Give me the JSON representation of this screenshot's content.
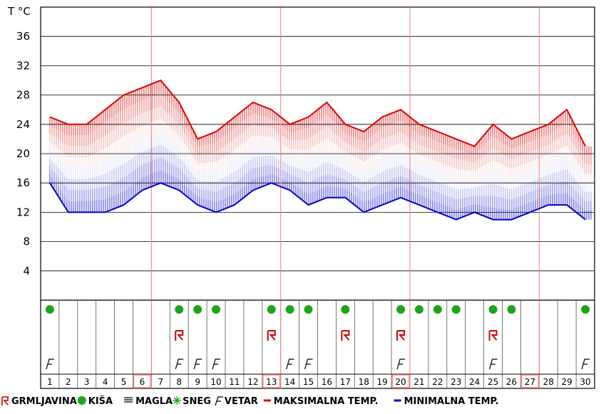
{
  "chart_data": {
    "type": "line",
    "ylabel": "T °C",
    "ylim": [
      0,
      40
    ],
    "yticks": [
      4,
      8,
      12,
      16,
      20,
      24,
      28,
      32,
      36
    ],
    "x": [
      1,
      2,
      3,
      4,
      5,
      6,
      7,
      8,
      9,
      10,
      11,
      12,
      13,
      14,
      15,
      16,
      17,
      18,
      19,
      20,
      21,
      22,
      23,
      24,
      25,
      26,
      27,
      28,
      29,
      30
    ],
    "series": [
      {
        "name": "MAKSIMALNA TEMP.",
        "color": "#dd0000",
        "values": [
          25,
          24,
          24,
          26,
          28,
          29,
          30,
          27,
          22,
          23,
          25,
          27,
          26,
          24,
          25,
          27,
          24,
          23,
          25,
          26,
          24,
          23,
          22,
          21,
          24,
          22,
          23,
          24,
          26,
          21
        ]
      },
      {
        "name": "MINIMALNA TEMP.",
        "color": "#0000cc",
        "values": [
          16,
          12,
          12,
          12,
          13,
          15,
          16,
          15,
          13,
          12,
          13,
          15,
          16,
          15,
          13,
          14,
          14,
          12,
          13,
          14,
          13,
          12,
          11,
          12,
          11,
          11,
          12,
          13,
          13,
          11
        ]
      }
    ],
    "week_lines_after_day": [
      6,
      13,
      20,
      27
    ],
    "highlighted_days": [
      6,
      13,
      20,
      27
    ],
    "weather": {
      "rain": [
        1,
        8,
        9,
        10,
        13,
        14,
        15,
        17,
        20,
        21,
        22,
        23,
        25,
        26,
        30
      ],
      "thunder": [
        8,
        13,
        17,
        20,
        25
      ],
      "wind": [
        1,
        8,
        9,
        10,
        14,
        15,
        20,
        25,
        30
      ],
      "fog": [],
      "snow": []
    },
    "legend": [
      {
        "key": "thunder",
        "label": "GRMLJAVINA",
        "icon": "thunder-icon"
      },
      {
        "key": "rain",
        "label": "KIŠA",
        "icon": "rain-dot-icon"
      },
      {
        "key": "fog",
        "label": "MAGLA",
        "icon": "fog-lines-icon"
      },
      {
        "key": "snow",
        "label": "SNEG",
        "icon": "snowflake-icon"
      },
      {
        "key": "wind",
        "label": "VETAR",
        "icon": "wind-flag-icon"
      },
      {
        "key": "max",
        "label": "MAKSIMALNA TEMP.",
        "icon": "red-line-icon"
      },
      {
        "key": "min",
        "label": "MINIMALNA TEMP.",
        "icon": "blue-line-icon"
      }
    ],
    "colors": {
      "max": "#dd0000",
      "min": "#0000cc",
      "rain": "#1aa51a",
      "thunder": "#cc0000",
      "week_line": "#f08080",
      "grid": "#000000"
    }
  }
}
